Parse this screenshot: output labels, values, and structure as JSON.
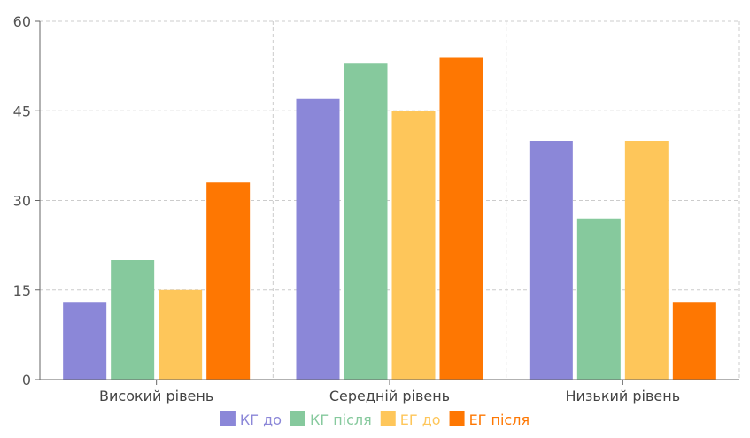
{
  "chart_data": {
    "type": "bar",
    "title": "",
    "xlabel": "",
    "ylabel": "",
    "categories": [
      "Високий рівень",
      "Середній рівень",
      "Низький рівень"
    ],
    "series": [
      {
        "name": "КГ до",
        "color": "#8b87d8",
        "values": [
          13,
          47,
          40
        ]
      },
      {
        "name": "КГ після",
        "color": "#86c99d",
        "values": [
          20,
          53,
          27
        ]
      },
      {
        "name": "ЕГ до",
        "color": "#fec65a",
        "values": [
          15,
          45,
          40
        ]
      },
      {
        "name": "ЕГ після",
        "color": "#fe7702",
        "values": [
          33,
          54,
          13
        ]
      }
    ],
    "ylim": [
      0,
      60
    ],
    "yticks": [
      0,
      15,
      30,
      45,
      60
    ],
    "grid": true,
    "legend": "bottom-center"
  }
}
